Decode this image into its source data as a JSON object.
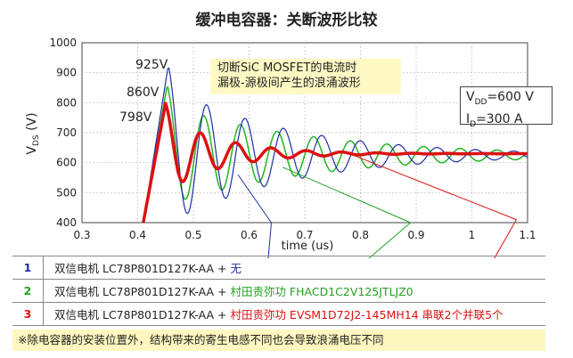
{
  "chart_data": {
    "type": "line",
    "title": "缓冲电容器：关断波形比较",
    "xlabel": "time (us)",
    "ylabel": "V",
    "ylabel_sub": "DS",
    "ylabel_unit": " (V)",
    "xlim": [
      0.3,
      1.1
    ],
    "ylim": [
      400,
      1000
    ],
    "x_ticks": [
      "0.3",
      "0.4",
      "0.5",
      "0.6",
      "0.7",
      "0.8",
      "0.9",
      "1",
      "1.1"
    ],
    "y_ticks": [
      "400",
      "500",
      "600",
      "700",
      "800",
      "900",
      "1000"
    ],
    "grid": true,
    "series": [
      {
        "id": "1",
        "color": "#1f2fa0",
        "stroke": 1.2,
        "t0": 0.41,
        "tp": 0.455,
        "peak": 925,
        "amp": 230,
        "freq": 14.5,
        "tau": 0.22,
        "base": 625
      },
      {
        "id": "2",
        "color": "#22b422",
        "stroke": 1.5,
        "t0": 0.41,
        "tp": 0.453,
        "peak": 860,
        "amp": 170,
        "freq": 15.2,
        "tau": 0.26,
        "base": 625
      },
      {
        "id": "3",
        "color": "#dd1111",
        "stroke": 3.5,
        "t0": 0.41,
        "tp": 0.45,
        "peak": 798,
        "amp": 130,
        "freq": 15.8,
        "tau": 0.1,
        "base": 630
      }
    ],
    "peak_labels": [
      "925V",
      "860V",
      "798V"
    ]
  },
  "annotation": {
    "line1": "切断SiC MOSFET的电流时",
    "line2": "漏极-源极间产生的浪涌波形"
  },
  "conditions": {
    "vdd_main": "V",
    "vdd_sub": "DD",
    "vdd_val": "=600 V",
    "id_main": "I",
    "id_sub": "D",
    "id_val": "=300 A"
  },
  "legend": [
    {
      "num": "1",
      "color": "#1f2fa0",
      "part_prefix": "双信电机 LC78P801D127K-AA + ",
      "part_suffix": "无"
    },
    {
      "num": "2",
      "color": "#22a022",
      "part_prefix": "双信电机 LC78P801D127K-AA + ",
      "part_suffix": "村田贵弥功 FHACD1C2V125JTLJZ0"
    },
    {
      "num": "3",
      "color": "#dd1111",
      "part_prefix": "双信电机 LC78P801D127K-AA + ",
      "part_suffix": "村田贵弥功 EVSM1D72J2-145MH14 串联2个并联5个"
    }
  ],
  "note": "※除电容器的安装位置外，结构带来的寄生电感不同也会导致浪涌电压不同"
}
